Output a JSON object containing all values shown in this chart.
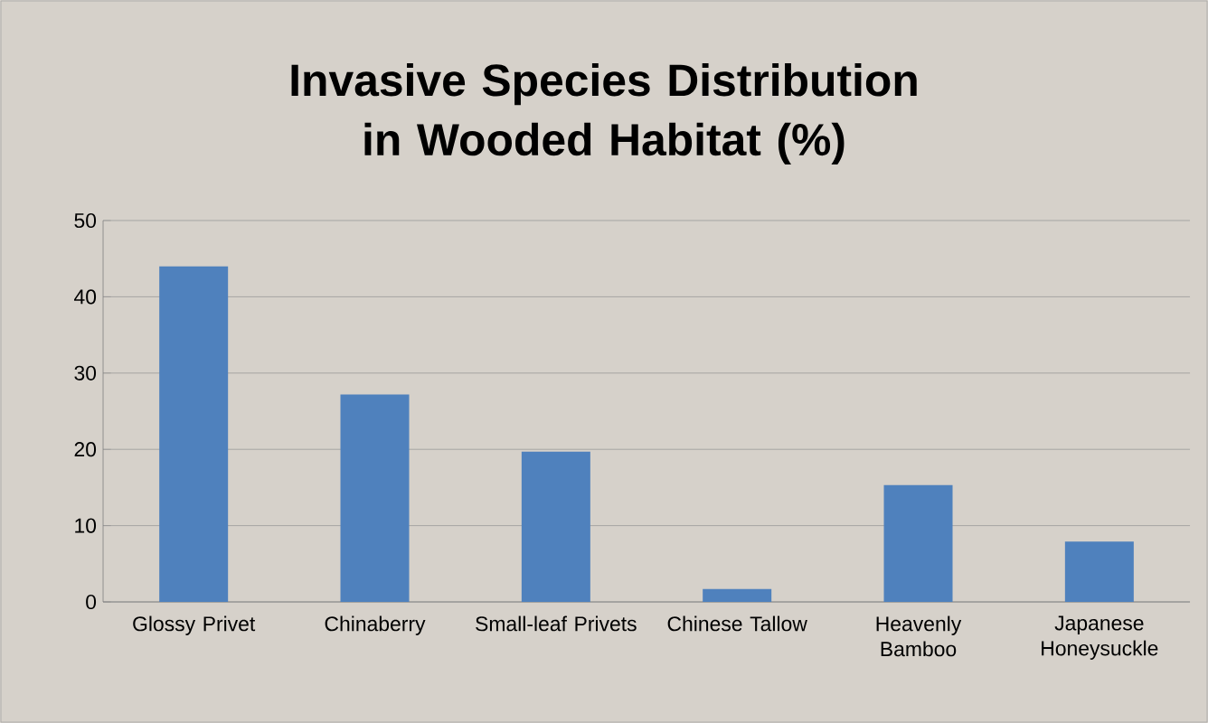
{
  "chart_data": {
    "type": "bar",
    "title": "Invasive Species Distribution in Wooded Habitat (%)",
    "categories": [
      "Glossy Privet",
      "Chinaberry",
      "Small-leaf Privets",
      "Chinese Tallow",
      "Heavenly Bamboo",
      "Japanese Honeysuckle"
    ],
    "values": [
      44.0,
      27.2,
      19.7,
      1.7,
      15.3,
      7.9
    ],
    "color": "#4f81bd",
    "ylim": [
      0,
      50
    ],
    "yticks": [
      0,
      10,
      20,
      30,
      40,
      50
    ],
    "grid": "y"
  }
}
